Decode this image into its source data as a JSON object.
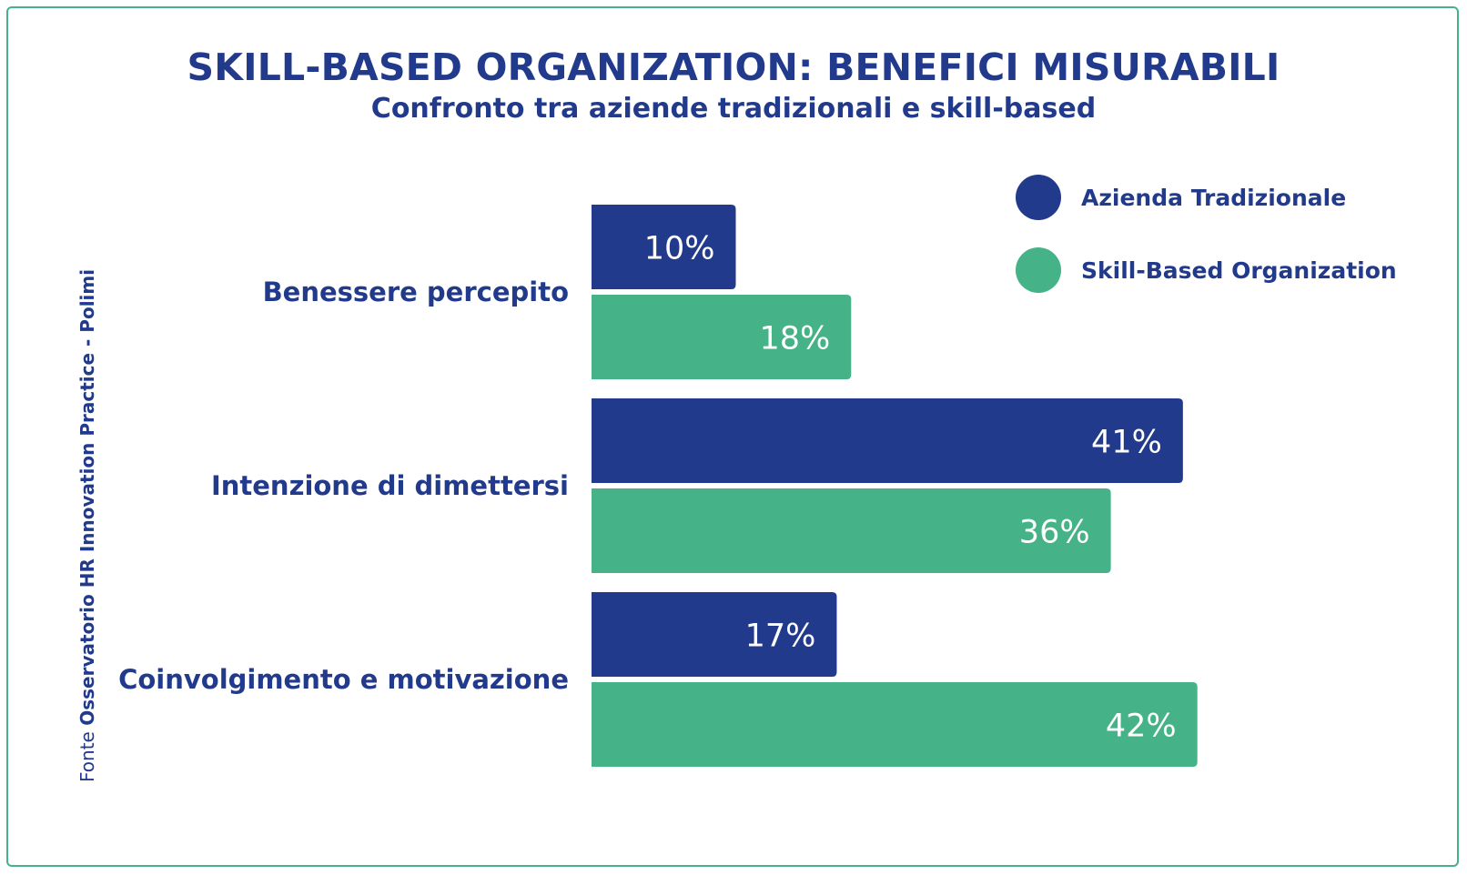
{
  "chart_data": {
    "type": "bar",
    "orientation": "horizontal",
    "title": "SKILL-BASED ORGANIZATION: BENEFICI MISURABILI",
    "subtitle": "Confronto tra aziende tradizionali e skill-based",
    "categories": [
      "Benessere percepito",
      "Intenzione di dimettersi",
      "Coinvolgimento e motivazione"
    ],
    "series": [
      {
        "name": "Azienda Tradizionale",
        "values": [
          10,
          41,
          17
        ],
        "labels": [
          "10%",
          "41%",
          "17%"
        ],
        "color": "#223a8c"
      },
      {
        "name": "Skill-Based Organization",
        "values": [
          18,
          36,
          42
        ],
        "labels": [
          "18%",
          "36%",
          "42%"
        ],
        "color": "#45b287"
      }
    ],
    "xlim": [
      0,
      55
    ],
    "grid": false,
    "legend_position": "top-right"
  },
  "source": {
    "prefix": "Fonte",
    "name": "Osservatorio HR Innovation Practice - Polimi"
  },
  "colors": {
    "accent": "#223a8c",
    "green": "#45b287",
    "border": "#45b287"
  }
}
